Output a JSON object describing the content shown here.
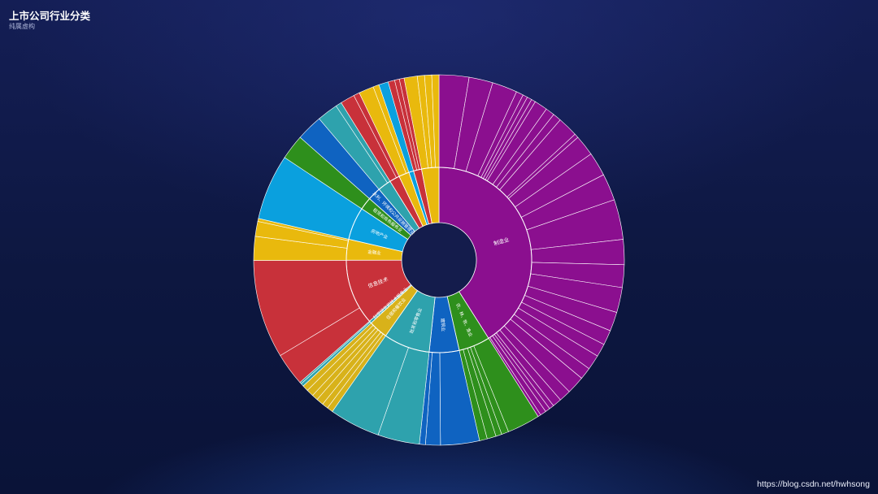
{
  "title": "上市公司行业分类",
  "subtitle": "纯属虚构",
  "watermark": "https://blog.csdn.net/hwhsong",
  "colors": {
    "purple": "#8b0f8f",
    "blue": "#0f63c1",
    "green": "#2e8f1c",
    "red": "#c8313a",
    "yellow": "#e9b90d",
    "sky": "#0aa0de",
    "teal": "#2ea2ad",
    "gold": "#d8b21a"
  },
  "chart_data": {
    "type": "sunburst",
    "title": "上市公司行业分类",
    "subtitle": "纯属虚构",
    "categories": [
      {
        "name": "制造业",
        "color": "purple",
        "children": [
          {
            "name": "",
            "value": 5.0
          },
          {
            "name": "",
            "value": 4.0
          },
          {
            "name": "",
            "value": 4.2
          },
          {
            "name": "",
            "value": 1.2
          },
          {
            "name": "",
            "value": 0.8
          },
          {
            "name": "",
            "value": 0.8
          },
          {
            "name": "",
            "value": 0.7
          },
          {
            "name": "",
            "value": 2.2
          },
          {
            "name": "",
            "value": 1.5
          },
          {
            "name": "",
            "value": 1.4
          },
          {
            "name": "",
            "value": 3.4
          },
          {
            "name": "",
            "value": 0.7
          },
          {
            "name": "",
            "value": 3.5
          },
          {
            "name": "",
            "value": 4.0
          },
          {
            "name": "",
            "value": 4.5
          },
          {
            "name": "",
            "value": 6.7
          },
          {
            "name": "",
            "value": 4.2
          },
          {
            "name": "",
            "value": 3.8
          },
          {
            "name": "",
            "value": 4.2
          },
          {
            "name": "",
            "value": 3.2
          },
          {
            "name": "",
            "value": 2.5
          },
          {
            "name": "",
            "value": 2.2
          },
          {
            "name": "",
            "value": 2.5
          },
          {
            "name": "",
            "value": 2.0
          },
          {
            "name": "",
            "value": 3.0
          },
          {
            "name": "",
            "value": 2.0
          },
          {
            "name": "",
            "value": 1.5
          },
          {
            "name": "",
            "value": 0.8
          },
          {
            "name": "",
            "value": 0.8
          },
          {
            "name": "",
            "value": 1.0
          },
          {
            "name": "",
            "value": 0.5
          }
        ]
      },
      {
        "name": "农、林、牧、渔业",
        "color": "green",
        "children": [
          {
            "name": "",
            "value": 5.5
          },
          {
            "name": "",
            "value": 1.2
          },
          {
            "name": "",
            "value": 1.0
          },
          {
            "name": "",
            "value": 1.5
          },
          {
            "name": "",
            "value": 1.3
          }
        ]
      },
      {
        "name": "建筑业",
        "color": "blue",
        "children": [
          {
            "name": "",
            "value": 6.5
          },
          {
            "name": "",
            "value": 2.5
          },
          {
            "name": "",
            "value": 1.0
          }
        ]
      },
      {
        "name": "批发和零售业",
        "color": "teal",
        "children": [
          {
            "name": "",
            "value": 7.0
          },
          {
            "name": "",
            "value": 8.5
          }
        ]
      },
      {
        "name": "住宿和餐饮业",
        "color": "gold",
        "children": [
          {
            "name": "",
            "value": 1.0
          },
          {
            "name": "",
            "value": 1.0
          },
          {
            "name": "",
            "value": 1.2
          },
          {
            "name": "",
            "value": 1.0
          },
          {
            "name": "",
            "value": 1.2
          },
          {
            "name": "",
            "value": 1.0
          }
        ]
      },
      {
        "name": "科学研究和技术服务业",
        "color": "teal",
        "children": [
          {
            "name": "",
            "value": 0.5
          },
          {
            "name": "",
            "value": 0.3
          }
        ]
      },
      {
        "name": "信息技术",
        "color": "red",
        "children": [
          {
            "name": "",
            "value": 5.5
          },
          {
            "name": "",
            "value": 16.5
          }
        ]
      },
      {
        "name": "金融业",
        "color": "yellow",
        "children": [
          {
            "name": "",
            "value": 4.0
          },
          {
            "name": "",
            "value": 2.5
          },
          {
            "name": "",
            "value": 0.5
          }
        ]
      },
      {
        "name": "房地产业",
        "color": "sky",
        "children": [
          {
            "name": "",
            "value": 11.0
          }
        ]
      },
      {
        "name": "租赁和商务服务业",
        "color": "green",
        "children": [
          {
            "name": "",
            "value": 4.2
          }
        ]
      },
      {
        "name": "水利、环境和公共设施管理业",
        "color": "blue",
        "children": [
          {
            "name": "",
            "value": 4.4
          }
        ]
      },
      {
        "name": "",
        "color": "teal",
        "children": [
          {
            "name": "",
            "value": 3.5
          },
          {
            "name": "",
            "value": 1.0
          }
        ]
      },
      {
        "name": "",
        "color": "red",
        "children": [
          {
            "name": "",
            "value": 2.4
          },
          {
            "name": "",
            "value": 1.0
          }
        ]
      },
      {
        "name": "",
        "color": "yellow",
        "children": [
          {
            "name": "",
            "value": 2.5
          },
          {
            "name": "",
            "value": 1.0
          }
        ]
      },
      {
        "name": "",
        "color": "sky",
        "children": [
          {
            "name": "",
            "value": 1.6
          }
        ]
      },
      {
        "name": "",
        "color": "red",
        "children": [
          {
            "name": "",
            "value": 1.1
          },
          {
            "name": "",
            "value": 0.8
          },
          {
            "name": "",
            "value": 0.8
          }
        ]
      },
      {
        "name": "",
        "color": "yellow",
        "children": [
          {
            "name": "",
            "value": 2.2
          },
          {
            "name": "",
            "value": 1.2
          },
          {
            "name": "",
            "value": 1.2
          },
          {
            "name": "",
            "value": 1.2
          }
        ]
      }
    ]
  }
}
